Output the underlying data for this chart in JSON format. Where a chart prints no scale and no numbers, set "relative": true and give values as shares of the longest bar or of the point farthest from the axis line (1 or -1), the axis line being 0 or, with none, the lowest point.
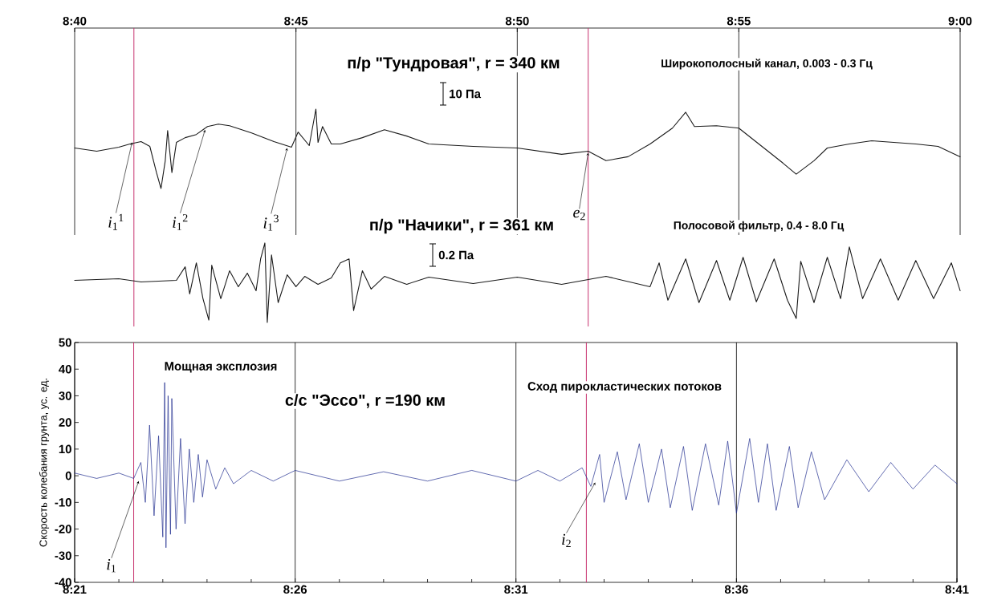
{
  "chart_data": [
    {
      "type": "line",
      "title": "п/р \"Тундровая\",  r = 340 км",
      "subtitle": "Широкополосный канал, 0.003 - 0.3 Гц",
      "relative": true,
      "x": [
        8.6667,
        8.675,
        8.6833,
        8.6875,
        8.6917,
        8.695,
        8.6975,
        8.6992,
        8.7008,
        8.7017,
        8.7033,
        8.705,
        8.7083,
        8.7125,
        8.7167,
        8.7208,
        8.725,
        8.7333,
        8.7417,
        8.7483,
        8.7508,
        8.755,
        8.7575,
        8.7583,
        8.76,
        8.7633,
        8.7667,
        8.775,
        8.7833,
        8.7917,
        8.8,
        8.8167,
        8.8333,
        8.85,
        8.86,
        8.8667,
        8.875,
        8.8833,
        8.8917,
        8.8967,
        8.9,
        8.9083,
        8.9167,
        8.925,
        8.9333,
        8.9383,
        8.945,
        8.95,
        8.9583,
        8.9667,
        8.975,
        8.9833,
        8.9917,
        9.0
      ],
      "series": [
        {
          "color": "#1a1a1a",
          "values": [
            0.51,
            0.47,
            0.52,
            0.56,
            0.59,
            0.53,
            0.2,
            0.0,
            0.35,
            0.73,
            0.2,
            0.58,
            0.64,
            0.68,
            0.78,
            0.81,
            0.79,
            0.7,
            0.59,
            0.52,
            0.71,
            0.54,
            1.0,
            0.58,
            0.78,
            0.56,
            0.56,
            0.64,
            0.74,
            0.66,
            0.56,
            0.53,
            0.51,
            0.43,
            0.47,
            0.35,
            0.4,
            0.56,
            0.76,
            0.96,
            0.78,
            0.79,
            0.76,
            0.54,
            0.32,
            0.18,
            0.35,
            0.51,
            0.56,
            0.6,
            0.58,
            0.56,
            0.53,
            0.4
          ]
        }
      ],
      "xlim": [
        8.6667,
        9.0
      ],
      "xticks": [
        {
          "value": 8.6667,
          "label": "8:40"
        },
        {
          "value": 8.75,
          "label": "8:45"
        },
        {
          "value": 8.8333,
          "label": "8:50"
        },
        {
          "value": 8.9167,
          "label": "8:55"
        },
        {
          "value": 9.0,
          "label": "9:00"
        }
      ],
      "grid": "x",
      "tick_labels": "x",
      "ref_lines": [
        {
          "axis": "x",
          "value": 8.689,
          "color": "#c8326e"
        },
        {
          "axis": "x",
          "value": 8.86,
          "color": "#c8326e"
        }
      ],
      "annotations": [
        {
          "text": "*i*$_{1}$$^{1}$",
          "x": 8.6883,
          "y": 0.58
        },
        {
          "text": "*i*$_{1}$$^{2}$",
          "x": 8.7158,
          "y": 0.74
        },
        {
          "text": "*i*$_{1}$$^{3}$",
          "x": 8.7467,
          "y": 0.51
        },
        {
          "text": "*e*$_{2}$",
          "x": 8.86,
          "y": 0.45
        },
        "10 Па"
      ]
    },
    {
      "type": "line",
      "title": "п/р \"Начики\", r = 361 км",
      "subtitle": "Полосовой фильтр, 0.4 - 8.0 Гц",
      "relative": true,
      "x": [
        8.6667,
        8.6833,
        8.6917,
        8.705,
        8.7083,
        8.71,
        8.7125,
        8.715,
        8.7172,
        8.7183,
        8.7217,
        8.725,
        8.7283,
        8.7317,
        8.735,
        8.7367,
        8.7383,
        8.7392,
        8.7408,
        8.7433,
        8.7467,
        8.75,
        8.7533,
        8.7583,
        8.7633,
        8.7667,
        8.77,
        8.7717,
        8.775,
        8.7783,
        8.7833,
        8.7917,
        8.8,
        8.8167,
        8.8333,
        8.85,
        8.8667,
        8.8833,
        8.8867,
        8.89,
        8.8967,
        8.9017,
        8.9083,
        8.9133,
        8.9183,
        8.9233,
        8.93,
        8.935,
        8.9383,
        8.94,
        8.945,
        8.95,
        8.955,
        8.9583,
        8.9633,
        8.97,
        8.9767,
        8.9833,
        8.99,
        8.9967,
        9.0
      ],
      "series": [
        {
          "color": "#1a1a1a",
          "values": [
            0.53,
            0.55,
            0.51,
            0.53,
            0.7,
            0.36,
            0.75,
            0.3,
            0.03,
            0.72,
            0.3,
            0.65,
            0.45,
            0.62,
            0.4,
            0.8,
            1.0,
            0.0,
            0.85,
            0.25,
            0.6,
            0.45,
            0.58,
            0.48,
            0.56,
            0.75,
            0.8,
            0.15,
            0.65,
            0.42,
            0.58,
            0.48,
            0.57,
            0.49,
            0.57,
            0.48,
            0.58,
            0.45,
            0.75,
            0.28,
            0.8,
            0.25,
            0.78,
            0.28,
            0.82,
            0.26,
            0.8,
            0.28,
            0.05,
            0.77,
            0.25,
            0.82,
            0.3,
            0.95,
            0.3,
            0.8,
            0.28,
            0.78,
            0.3,
            0.75,
            0.4
          ]
        }
      ],
      "xlim": [
        8.6667,
        9.0
      ],
      "xticks": [
        {
          "value": 8.6667,
          "label": null
        },
        {
          "value": 8.75,
          "label": null
        },
        {
          "value": 8.8333,
          "label": null
        },
        {
          "value": 8.9167,
          "label": null
        },
        {
          "value": 9.0,
          "label": null
        }
      ],
      "grid": "x",
      "tick_labels": false,
      "ref_lines": [
        {
          "axis": "x",
          "value": 8.689,
          "color": "#c8326e"
        },
        {
          "axis": "x",
          "value": 8.86,
          "color": "#c8326e"
        }
      ],
      "annotations": [
        "0.2 Па"
      ]
    },
    {
      "type": "line",
      "title": "с/с  \"Эссо\", r =190 км",
      "ylabel": "Скорость колебания грунта, ус. ед.",
      "x": [
        8.35,
        8.3583,
        8.3667,
        8.3723,
        8.375,
        8.3767,
        8.3783,
        8.38,
        8.3817,
        8.3833,
        8.384,
        8.3845,
        8.3853,
        8.3862,
        8.3867,
        8.3883,
        8.39,
        8.3917,
        8.3933,
        8.395,
        8.3967,
        8.3983,
        8.4,
        8.4033,
        8.4067,
        8.41,
        8.4167,
        8.425,
        8.4333,
        8.45,
        8.4667,
        8.4833,
        8.5,
        8.5167,
        8.525,
        8.5333,
        8.5417,
        8.545,
        8.5483,
        8.55,
        8.555,
        8.5583,
        8.5633,
        8.5667,
        8.5717,
        8.575,
        8.58,
        8.5833,
        8.5883,
        8.5933,
        8.5967,
        8.6,
        8.605,
        8.6083,
        8.6117,
        8.615,
        8.62,
        8.6233,
        8.6283,
        8.6333,
        8.6417,
        8.65,
        8.6583,
        8.6667,
        8.675,
        8.6833
      ],
      "series": [
        {
          "color": "#1f2c8f",
          "values": [
            1,
            -1,
            1,
            -1,
            5,
            -10,
            19,
            -15,
            15,
            -23,
            35,
            -27,
            30,
            -22,
            29,
            -20,
            14,
            -18,
            10,
            -10,
            8,
            -8,
            6,
            -5,
            3,
            -3,
            2,
            -2,
            2,
            -2,
            1.5,
            -2,
            2,
            -2,
            2,
            -2,
            3,
            -4,
            8,
            -10,
            9,
            -9,
            12,
            -10,
            10,
            -12,
            11,
            -13,
            12,
            -11,
            13,
            -14,
            14,
            -10,
            12,
            -13,
            11,
            -12,
            9,
            -9,
            6,
            -6,
            5,
            -5,
            4,
            -3
          ]
        }
      ],
      "xlim": [
        8.35,
        8.6833
      ],
      "ylim": [
        -40,
        50
      ],
      "xticks": [
        {
          "value": 8.35,
          "label": "8:21"
        },
        {
          "value": 8.3667,
          "label": null
        },
        {
          "value": 8.3833,
          "label": null
        },
        {
          "value": 8.4,
          "label": null
        },
        {
          "value": 8.4167,
          "label": null
        },
        {
          "value": 8.4333,
          "label": "8:26"
        },
        {
          "value": 8.45,
          "label": null
        },
        {
          "value": 8.4667,
          "label": null
        },
        {
          "value": 8.4833,
          "label": null
        },
        {
          "value": 8.5,
          "label": null
        },
        {
          "value": 8.5167,
          "label": "8:31"
        },
        {
          "value": 8.5333,
          "label": null
        },
        {
          "value": 8.55,
          "label": null
        },
        {
          "value": 8.5667,
          "label": null
        },
        {
          "value": 8.5833,
          "label": null
        },
        {
          "value": 8.6,
          "label": "8:36"
        },
        {
          "value": 8.6167,
          "label": null
        },
        {
          "value": 8.6333,
          "label": null
        },
        {
          "value": 8.65,
          "label": null
        },
        {
          "value": 8.6667,
          "label": null
        },
        {
          "value": 8.6833,
          "label": "8:41"
        }
      ],
      "yticks": [
        -40,
        -30,
        -20,
        -10,
        0,
        10,
        20,
        30,
        40,
        50
      ],
      "grid": "x",
      "ref_lines": [
        {
          "axis": "x",
          "value": 8.3723,
          "color": "#c8326e"
        },
        {
          "axis": "x",
          "value": 8.5433,
          "color": "#c8326e"
        }
      ],
      "annotations": [
        "Мощная эксплозия",
        "Сход пирокластических потоков",
        {
          "text": "*i*$_{1}$",
          "x": 8.3742,
          "y": -2
        },
        {
          "text": "*i*$_{2}$",
          "x": 8.5467,
          "y": -2.5
        }
      ]
    }
  ]
}
